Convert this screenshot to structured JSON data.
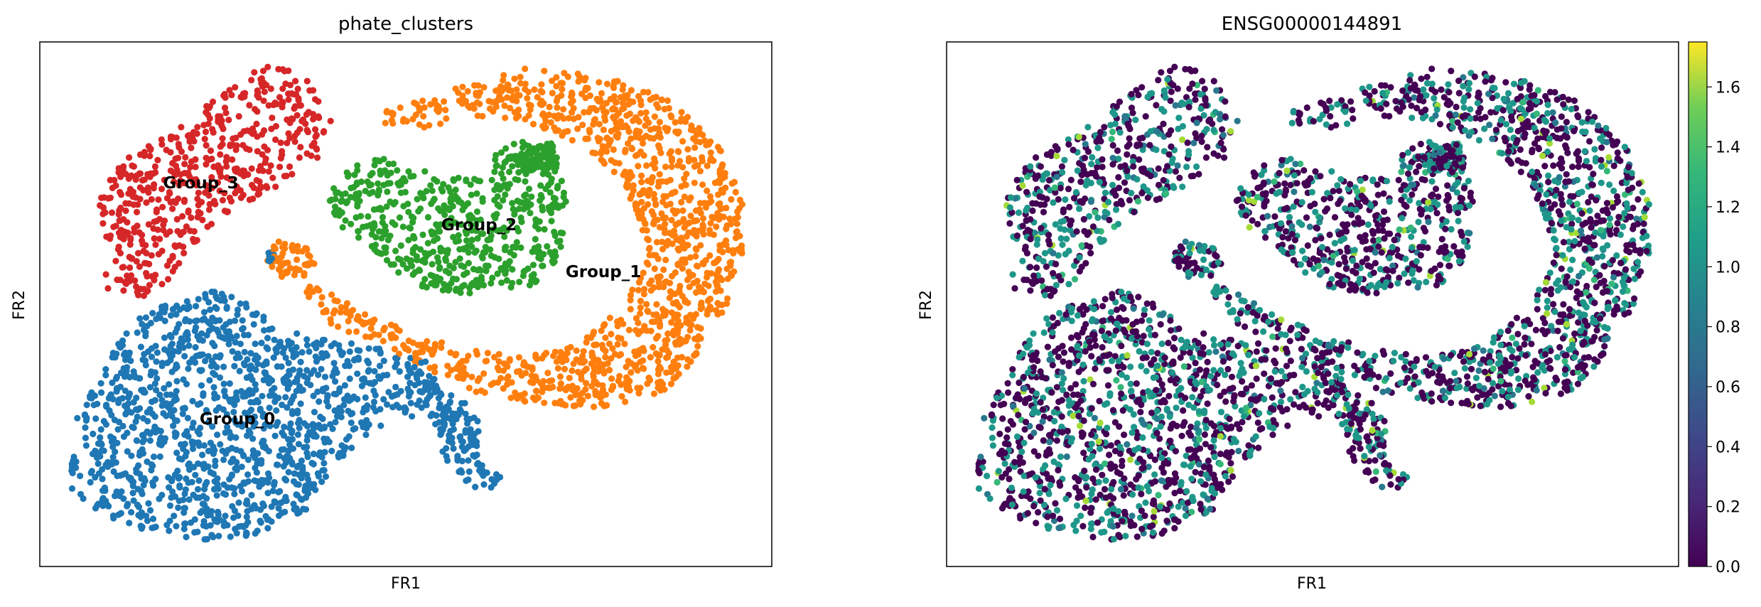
{
  "chart_data": [
    {
      "type": "scatter",
      "title": "phate_clusters",
      "xlabel": "FR1",
      "ylabel": "FR2",
      "xlim": [
        0,
        100
      ],
      "ylim": [
        0,
        100
      ],
      "grid": false,
      "legend": "on data",
      "series": [
        {
          "name": "Group_0",
          "color": "#1f77b4",
          "label_pos": [
            27,
            28
          ],
          "regions": [
            {
              "poly": [
                [
                  4,
                  15
                ],
                [
                  7,
                  11
                ],
                [
                  13,
                  7
                ],
                [
                  22,
                  5
                ],
                [
                  30,
                  6
                ],
                [
                  36,
                  10
                ],
                [
                  39,
                  17
                ],
                [
                  43,
                  23
                ],
                [
                  48,
                  27
                ],
                [
                  52,
                  29
                ],
                [
                  55,
                  35
                ],
                [
                  54,
                  39
                ],
                [
                  48,
                  41
                ],
                [
                  42,
                  43
                ],
                [
                  36,
                  44
                ],
                [
                  30,
                  48
                ],
                [
                  26,
                  53
                ],
                [
                  22,
                  52
                ],
                [
                  17,
                  50
                ],
                [
                  12,
                  46
                ],
                [
                  9,
                  38
                ],
                [
                  5,
                  28
                ],
                [
                  4,
                  20
                ]
              ],
              "n": 1250
            },
            {
              "poly": [
                [
                  53,
                  37
                ],
                [
                  57,
                  33
                ],
                [
                  60,
                  28
                ],
                [
                  60,
                  22
                ],
                [
                  61,
                  19
                ],
                [
                  63,
                  17
                ],
                [
                  62,
                  15
                ],
                [
                  59,
                  15
                ],
                [
                  57,
                  18
                ],
                [
                  55,
                  21
                ],
                [
                  54,
                  27
                ],
                [
                  52,
                  32
                ]
              ],
              "n": 120
            },
            {
              "poly": [
                [
                  31,
                  58
                ],
                [
                  32,
                  58
                ],
                [
                  32,
                  60
                ],
                [
                  31,
                  60
                ]
              ],
              "n": 8
            }
          ]
        },
        {
          "name": "Group_1",
          "color": "#ff7f0e",
          "label_pos": [
            77,
            56
          ],
          "regions": [
            {
              "poly": [
                [
                  47,
                  87
                ],
                [
                  56,
                  91
                ],
                [
                  66,
                  95
                ],
                [
                  76,
                  94
                ],
                [
                  86,
                  89
                ],
                [
                  93,
                  80
                ],
                [
                  96,
                  70
                ],
                [
                  96,
                  60
                ],
                [
                  94,
                  50
                ],
                [
                  90,
                  40
                ],
                [
                  85,
                  33
                ],
                [
                  77,
                  30
                ],
                [
                  68,
                  31
                ],
                [
                  60,
                  33
                ],
                [
                  55,
                  36
                ],
                [
                  50,
                  40
                ],
                [
                  45,
                  43
                ],
                [
                  40,
                  46
                ],
                [
                  37,
                  50
                ],
                [
                  36,
                  54
                ],
                [
                  40,
                  52
                ],
                [
                  45,
                  48
                ],
                [
                  52,
                  44
                ],
                [
                  60,
                  41
                ],
                [
                  66,
                  40
                ],
                [
                  73,
                  42
                ],
                [
                  80,
                  50
                ],
                [
                  83,
                  60
                ],
                [
                  80,
                  73
                ],
                [
                  73,
                  81
                ],
                [
                  66,
                  85
                ],
                [
                  58,
                  85
                ],
                [
                  50,
                  83
                ],
                [
                  47,
                  84
                ]
              ],
              "n": 1250
            },
            {
              "poly": [
                [
                  32,
                  62
                ],
                [
                  36,
                  62
                ],
                [
                  38,
                  58
                ],
                [
                  37,
                  55
                ],
                [
                  33,
                  55
                ],
                [
                  31,
                  58
                ]
              ],
              "n": 55
            }
          ]
        },
        {
          "name": "Group_2",
          "color": "#2ca02c",
          "label_pos": [
            60,
            65
          ],
          "regions": [
            {
              "poly": [
                [
                  39,
                  70
                ],
                [
                  42,
                  76
                ],
                [
                  46,
                  78
                ],
                [
                  52,
                  76
                ],
                [
                  58,
                  74
                ],
                [
                  62,
                  74
                ],
                [
                  62,
                  79
                ],
                [
                  64,
                  81
                ],
                [
                  68,
                  81
                ],
                [
                  71,
                  78
                ],
                [
                  72,
                  72
                ],
                [
                  72,
                  65
                ],
                [
                  71,
                  59
                ],
                [
                  68,
                  54
                ],
                [
                  64,
                  52
                ],
                [
                  58,
                  52
                ],
                [
                  52,
                  53
                ],
                [
                  49,
                  56
                ],
                [
                  45,
                  61
                ],
                [
                  41,
                  65
                ]
              ],
              "n": 560
            },
            {
              "poly": [
                [
                  64,
                  78
                ],
                [
                  70,
                  81
                ],
                [
                  71,
                  76
                ],
                [
                  66,
                  75
                ]
              ],
              "n": 120
            }
          ]
        },
        {
          "name": "Group_3",
          "color": "#d62728",
          "label_pos": [
            22,
            73
          ],
          "regions": [
            {
              "poly": [
                [
                  9,
                  53
                ],
                [
                  14,
                  51
                ],
                [
                  18,
                  55
                ],
                [
                  20,
                  60
                ],
                [
                  26,
                  68
                ],
                [
                  32,
                  72
                ],
                [
                  38,
                  78
                ],
                [
                  40,
                  85
                ],
                [
                  38,
                  91
                ],
                [
                  36,
                  94
                ],
                [
                  31,
                  96
                ],
                [
                  28,
                  93
                ],
                [
                  23,
                  88
                ],
                [
                  17,
                  82
                ],
                [
                  11,
                  77
                ],
                [
                  8,
                  70
                ],
                [
                  9,
                  62
                ]
              ],
              "n": 520
            }
          ]
        }
      ]
    },
    {
      "type": "scatter",
      "title": "ENSG00000144891",
      "xlabel": "FR1",
      "ylabel": "FR2",
      "xlim": [
        0,
        100
      ],
      "ylim": [
        0,
        100
      ],
      "grid": false,
      "colorbar": {
        "cmap": "viridis",
        "range": [
          0,
          1.75
        ],
        "ticks": [
          "0.0",
          "0.2",
          "0.4",
          "0.6",
          "0.8",
          "1.0",
          "1.2",
          "1.4",
          "1.6"
        ],
        "tick_values": [
          0,
          0.2,
          0.4,
          0.6,
          0.8,
          1.0,
          1.2,
          1.4,
          1.6
        ]
      },
      "expression_mix": [
        {
          "color": "#440154",
          "weight": 0.56
        },
        {
          "color": "#1e978a",
          "weight": 0.34
        },
        {
          "color": "#2a788e",
          "weight": 0.05
        },
        {
          "color": "#35b779",
          "weight": 0.03
        },
        {
          "color": "#a5db36",
          "weight": 0.02
        }
      ]
    }
  ]
}
